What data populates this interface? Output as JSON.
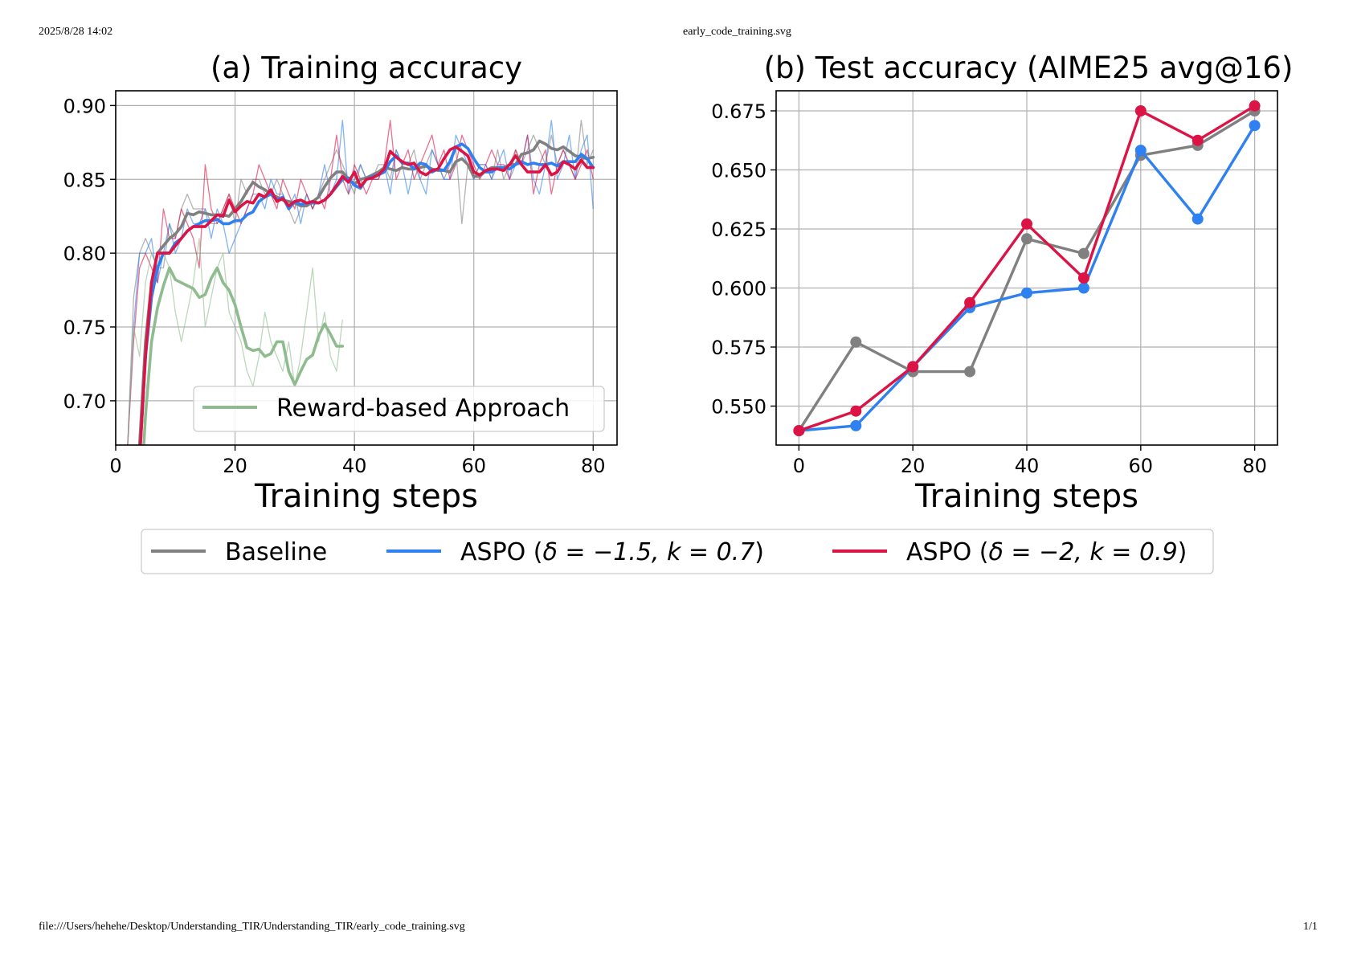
{
  "page": {
    "timestamp": "2025/8/28 14:02",
    "filename": "early_code_training.svg",
    "file_url": "file:///Users/hehehe/Desktop/Understanding_TIR/Understanding_TIR/early_code_training.svg",
    "page_number": "1/1"
  },
  "colors": {
    "baseline": "#808080",
    "aspo_a": "#2f80f0",
    "aspo_b": "#dc1446",
    "reward": "#8fbc8f"
  },
  "legend": {
    "items": [
      {
        "key": "baseline",
        "label": "Baseline"
      },
      {
        "key": "aspo_a",
        "label_prefix": "ASPO (",
        "label_math": "δ = −1.5, k = 0.7",
        "label_suffix": ")"
      },
      {
        "key": "aspo_b",
        "label_prefix": "ASPO (",
        "label_math": "δ = −2, k = 0.9",
        "label_suffix": ")"
      }
    ]
  },
  "chart_data": [
    {
      "type": "line",
      "title": "(a) Training accuracy",
      "xlabel": "Training steps",
      "ylabel": "",
      "xlim": [
        0,
        84
      ],
      "ylim": [
        0.67,
        0.91
      ],
      "xticks": [
        0,
        20,
        40,
        60,
        80
      ],
      "yticks": [
        0.7,
        0.75,
        0.8,
        0.85,
        0.9
      ],
      "ytick_labels": [
        "0.70",
        "0.75",
        "0.80",
        "0.85",
        "0.90"
      ],
      "grid": true,
      "legend": {
        "placement": "lower-right",
        "entries": [
          "Reward-based Approach"
        ]
      },
      "series": [
        {
          "name": "Baseline",
          "color_key": "baseline",
          "x": [
            2,
            3,
            4,
            5,
            6,
            7,
            8,
            9,
            10,
            11,
            12,
            13,
            14,
            15,
            16,
            17,
            18,
            19,
            20,
            21,
            22,
            23,
            24,
            25,
            26,
            27,
            28,
            29,
            30,
            31,
            32,
            33,
            34,
            35,
            36,
            37,
            38,
            39,
            40,
            41,
            42,
            43,
            44,
            45,
            46,
            47,
            48,
            49,
            50,
            51,
            52,
            53,
            54,
            55,
            56,
            57,
            58,
            59,
            60,
            61,
            62,
            63,
            64,
            65,
            66,
            67,
            68,
            69,
            70,
            71,
            72,
            73,
            74,
            75,
            76,
            77,
            78,
            79,
            80
          ],
          "raw": [
            0.67,
            0.77,
            0.8,
            0.81,
            0.8,
            0.79,
            0.79,
            0.82,
            0.81,
            0.83,
            0.84,
            0.83,
            0.83,
            0.83,
            0.82,
            0.82,
            0.83,
            0.84,
            0.82,
            0.85,
            0.84,
            0.85,
            0.85,
            0.84,
            0.84,
            0.85,
            0.84,
            0.83,
            0.82,
            0.83,
            0.84,
            0.83,
            0.84,
            0.85,
            0.86,
            0.87,
            0.86,
            0.85,
            0.84,
            0.86,
            0.85,
            0.85,
            0.86,
            0.86,
            0.85,
            0.87,
            0.86,
            0.86,
            0.87,
            0.85,
            0.86,
            0.87,
            0.86,
            0.85,
            0.86,
            0.87,
            0.82,
            0.86,
            0.85,
            0.86,
            0.86,
            0.85,
            0.87,
            0.85,
            0.86,
            0.87,
            0.86,
            0.87,
            0.88,
            0.87,
            0.86,
            0.88,
            0.86,
            0.87,
            0.86,
            0.85,
            0.89,
            0.86,
            0.87
          ],
          "smoothed": [
            0.58,
            0.62,
            0.67,
            0.74,
            0.78,
            0.8,
            0.805,
            0.81,
            0.813,
            0.818,
            0.827,
            0.826,
            0.828,
            0.827,
            0.826,
            0.826,
            0.826,
            0.825,
            0.83,
            0.835,
            0.842,
            0.848,
            0.845,
            0.843,
            0.84,
            0.838,
            0.836,
            0.835,
            0.834,
            0.832,
            0.832,
            0.835,
            0.838,
            0.845,
            0.851,
            0.855,
            0.855,
            0.85,
            0.847,
            0.85,
            0.851,
            0.853,
            0.855,
            0.858,
            0.857,
            0.856,
            0.858,
            0.857,
            0.857,
            0.858,
            0.859,
            0.857,
            0.856,
            0.856,
            0.855,
            0.862,
            0.864,
            0.86,
            0.852,
            0.852,
            0.856,
            0.858,
            0.858,
            0.858,
            0.86,
            0.86,
            0.867,
            0.868,
            0.87,
            0.876,
            0.874,
            0.871,
            0.87,
            0.872,
            0.869,
            0.866,
            0.865,
            0.864,
            0.865
          ]
        },
        {
          "name": "ASPO (δ = −1.5, k = 0.7)",
          "color_key": "aspo_a",
          "x": [
            2,
            3,
            4,
            5,
            6,
            7,
            8,
            9,
            10,
            11,
            12,
            13,
            14,
            15,
            16,
            17,
            18,
            19,
            20,
            21,
            22,
            23,
            24,
            25,
            26,
            27,
            28,
            29,
            30,
            31,
            32,
            33,
            34,
            35,
            36,
            37,
            38,
            39,
            40,
            41,
            42,
            43,
            44,
            45,
            46,
            47,
            48,
            49,
            50,
            51,
            52,
            53,
            54,
            55,
            56,
            57,
            58,
            59,
            60,
            61,
            62,
            63,
            64,
            65,
            66,
            67,
            68,
            69,
            70,
            71,
            72,
            73,
            74,
            75,
            76,
            77,
            78,
            79,
            80
          ],
          "raw": [
            0.67,
            0.75,
            0.8,
            0.8,
            0.81,
            0.78,
            0.8,
            0.82,
            0.8,
            0.81,
            0.83,
            0.82,
            0.82,
            0.83,
            0.81,
            0.83,
            0.82,
            0.8,
            0.81,
            0.82,
            0.83,
            0.84,
            0.84,
            0.83,
            0.85,
            0.84,
            0.84,
            0.83,
            0.84,
            0.82,
            0.84,
            0.83,
            0.84,
            0.86,
            0.84,
            0.85,
            0.89,
            0.84,
            0.85,
            0.86,
            0.85,
            0.85,
            0.85,
            0.86,
            0.84,
            0.87,
            0.86,
            0.84,
            0.86,
            0.85,
            0.84,
            0.87,
            0.86,
            0.85,
            0.85,
            0.88,
            0.87,
            0.86,
            0.85,
            0.86,
            0.86,
            0.85,
            0.86,
            0.87,
            0.85,
            0.86,
            0.86,
            0.88,
            0.85,
            0.84,
            0.86,
            0.89,
            0.85,
            0.86,
            0.88,
            0.85,
            0.87,
            0.88,
            0.83
          ],
          "smoothed": [
            0.55,
            0.6,
            0.66,
            0.73,
            0.77,
            0.79,
            0.8,
            0.8,
            0.807,
            0.81,
            0.815,
            0.818,
            0.82,
            0.822,
            0.822,
            0.823,
            0.82,
            0.82,
            0.822,
            0.822,
            0.826,
            0.828,
            0.835,
            0.838,
            0.84,
            0.836,
            0.838,
            0.83,
            0.835,
            0.833,
            0.834,
            0.834,
            0.834,
            0.836,
            0.84,
            0.845,
            0.85,
            0.851,
            0.846,
            0.844,
            0.85,
            0.852,
            0.853,
            0.855,
            0.862,
            0.866,
            0.861,
            0.861,
            0.857,
            0.861,
            0.86,
            0.855,
            0.857,
            0.856,
            0.862,
            0.872,
            0.874,
            0.871,
            0.864,
            0.858,
            0.855,
            0.855,
            0.858,
            0.858,
            0.857,
            0.86,
            0.862,
            0.86,
            0.861,
            0.86,
            0.86,
            0.861,
            0.859,
            0.862,
            0.862,
            0.862,
            0.867,
            0.864,
            0.858
          ]
        },
        {
          "name": "ASPO (δ = −2, k = 0.9)",
          "color_key": "aspo_b",
          "x": [
            2,
            3,
            4,
            5,
            6,
            7,
            8,
            9,
            10,
            11,
            12,
            13,
            14,
            15,
            16,
            17,
            18,
            19,
            20,
            21,
            22,
            23,
            24,
            25,
            26,
            27,
            28,
            29,
            30,
            31,
            32,
            33,
            34,
            35,
            36,
            37,
            38,
            39,
            40,
            41,
            42,
            43,
            44,
            45,
            46,
            47,
            48,
            49,
            50,
            51,
            52,
            53,
            54,
            55,
            56,
            57,
            58,
            59,
            60,
            61,
            62,
            63,
            64,
            65,
            66,
            67,
            68,
            69,
            70,
            71,
            72,
            73,
            74,
            75,
            76,
            77,
            78,
            79,
            80
          ],
          "raw": [
            0.67,
            0.74,
            0.79,
            0.8,
            0.79,
            0.78,
            0.83,
            0.81,
            0.81,
            0.83,
            0.82,
            0.81,
            0.79,
            0.86,
            0.83,
            0.82,
            0.83,
            0.84,
            0.83,
            0.82,
            0.83,
            0.84,
            0.86,
            0.85,
            0.84,
            0.83,
            0.85,
            0.84,
            0.83,
            0.85,
            0.84,
            0.83,
            0.84,
            0.83,
            0.85,
            0.88,
            0.85,
            0.84,
            0.86,
            0.85,
            0.84,
            0.85,
            0.85,
            0.86,
            0.89,
            0.85,
            0.86,
            0.87,
            0.85,
            0.86,
            0.87,
            0.88,
            0.86,
            0.87,
            0.85,
            0.86,
            0.88,
            0.87,
            0.86,
            0.85,
            0.86,
            0.87,
            0.86,
            0.86,
            0.85,
            0.87,
            0.86,
            0.88,
            0.84,
            0.86,
            0.87,
            0.84,
            0.86,
            0.87,
            0.86,
            0.85,
            0.86,
            0.87,
            0.85
          ],
          "smoothed": [
            0.55,
            0.6,
            0.66,
            0.73,
            0.78,
            0.8,
            0.8,
            0.8,
            0.805,
            0.81,
            0.815,
            0.818,
            0.818,
            0.818,
            0.822,
            0.826,
            0.825,
            0.836,
            0.828,
            0.832,
            0.835,
            0.834,
            0.84,
            0.838,
            0.843,
            0.835,
            0.837,
            0.832,
            0.835,
            0.836,
            0.834,
            0.835,
            0.834,
            0.836,
            0.84,
            0.846,
            0.852,
            0.848,
            0.855,
            0.845,
            0.85,
            0.851,
            0.853,
            0.857,
            0.869,
            0.865,
            0.862,
            0.86,
            0.861,
            0.855,
            0.853,
            0.856,
            0.857,
            0.864,
            0.87,
            0.872,
            0.869,
            0.866,
            0.855,
            0.853,
            0.856,
            0.857,
            0.857,
            0.856,
            0.86,
            0.866,
            0.86,
            0.855,
            0.855,
            0.855,
            0.86,
            0.853,
            0.855,
            0.862,
            0.86,
            0.857,
            0.863,
            0.858,
            0.858
          ]
        },
        {
          "name": "Reward-based Approach",
          "color_key": "reward",
          "x": [
            2,
            3,
            4,
            5,
            6,
            7,
            8,
            9,
            10,
            11,
            12,
            13,
            14,
            15,
            16,
            17,
            18,
            19,
            20,
            21,
            22,
            23,
            24,
            25,
            26,
            27,
            28,
            29,
            30,
            31,
            32,
            33,
            34,
            35,
            36,
            37,
            38
          ],
          "raw": [
            0.67,
            0.75,
            0.73,
            0.78,
            0.8,
            0.79,
            0.8,
            0.79,
            0.76,
            0.74,
            0.76,
            0.78,
            0.81,
            0.75,
            0.77,
            0.79,
            0.8,
            0.76,
            0.75,
            0.74,
            0.72,
            0.71,
            0.73,
            0.76,
            0.74,
            0.73,
            0.72,
            0.74,
            0.71,
            0.73,
            0.76,
            0.79,
            0.74,
            0.76,
            0.73,
            0.72,
            0.755
          ],
          "smoothed": [
            0.55,
            0.58,
            0.62,
            0.69,
            0.74,
            0.763,
            0.778,
            0.79,
            0.782,
            0.78,
            0.778,
            0.776,
            0.77,
            0.772,
            0.783,
            0.79,
            0.78,
            0.775,
            0.765,
            0.75,
            0.736,
            0.734,
            0.735,
            0.73,
            0.732,
            0.74,
            0.74,
            0.72,
            0.711,
            0.72,
            0.728,
            0.731,
            0.744,
            0.752,
            0.745,
            0.737,
            0.737
          ]
        }
      ]
    },
    {
      "type": "line",
      "title": "(b) Test accuracy (AIME25 avg@16)",
      "xlabel": "Training steps",
      "ylabel": "",
      "xlim": [
        -4,
        84
      ],
      "ylim": [
        0.5335,
        0.6835
      ],
      "xticks": [
        0,
        20,
        40,
        60,
        80
      ],
      "yticks": [
        0.55,
        0.575,
        0.6,
        0.625,
        0.65,
        0.675
      ],
      "ytick_labels": [
        "0.550",
        "0.575",
        "0.600",
        "0.625",
        "0.650",
        "0.675"
      ],
      "grid": true,
      "markers": true,
      "x": [
        0,
        10,
        20,
        30,
        40,
        50,
        60,
        70,
        80
      ],
      "series": [
        {
          "name": "Baseline",
          "color_key": "baseline",
          "values": [
            0.5396,
            0.5771,
            0.5646,
            0.5646,
            0.6208,
            0.6146,
            0.6562,
            0.6604,
            0.675
          ]
        },
        {
          "name": "ASPO (δ = −1.5, k = 0.7)",
          "color_key": "aspo_a",
          "values": [
            0.5396,
            0.5417,
            0.5667,
            0.5917,
            0.5979,
            0.6,
            0.6583,
            0.6292,
            0.6688
          ]
        },
        {
          "name": "ASPO (δ = −2, k = 0.9)",
          "color_key": "aspo_b",
          "values": [
            0.5396,
            0.5479,
            0.5667,
            0.5938,
            0.6271,
            0.6042,
            0.675,
            0.6625,
            0.6771
          ]
        }
      ]
    }
  ]
}
